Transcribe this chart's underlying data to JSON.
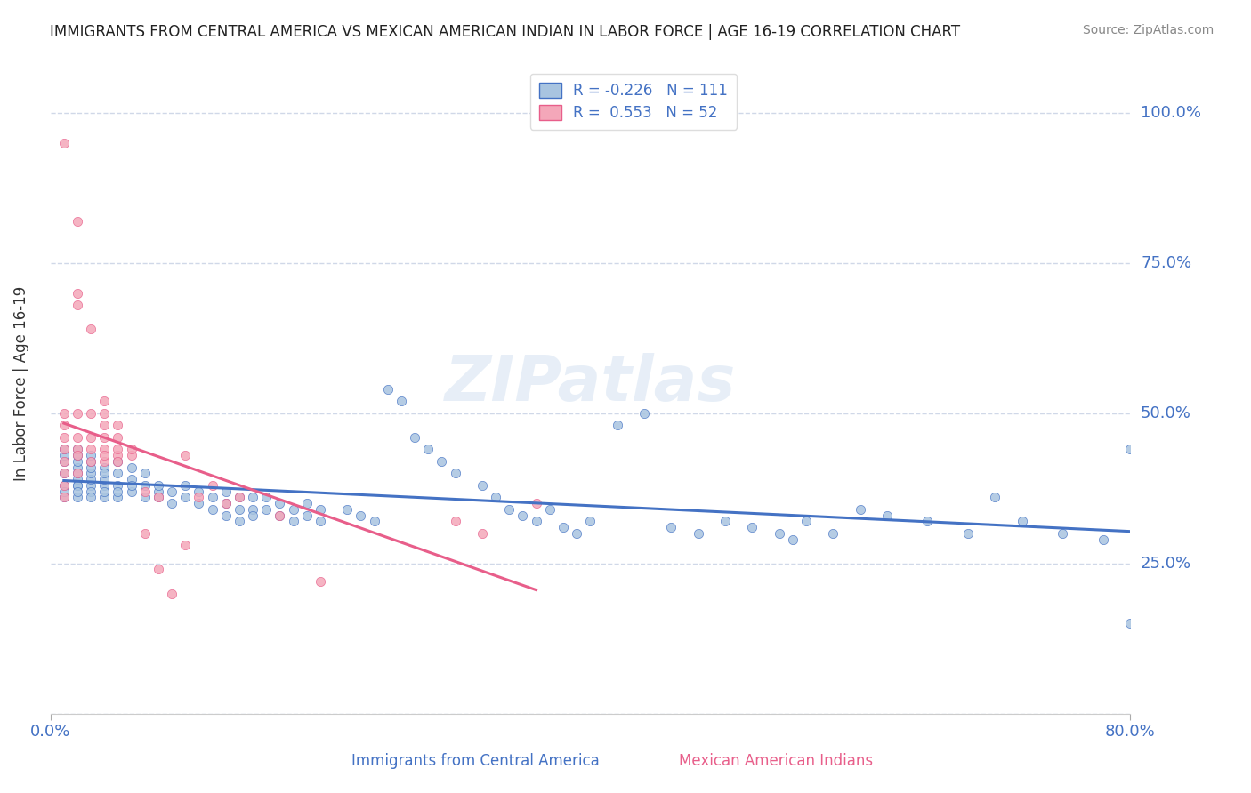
{
  "title": "IMMIGRANTS FROM CENTRAL AMERICA VS MEXICAN AMERICAN INDIAN IN LABOR FORCE | AGE 16-19 CORRELATION CHART",
  "source": "Source: ZipAtlas.com",
  "xlabel": "",
  "ylabel": "In Labor Force | Age 16-19",
  "legend_label_blue": "Immigrants from Central America",
  "legend_label_pink": "Mexican American Indians",
  "R_blue": -0.226,
  "N_blue": 111,
  "R_pink": 0.553,
  "N_pink": 52,
  "xlim": [
    0.0,
    0.8
  ],
  "ylim": [
    0.0,
    1.1
  ],
  "yticks": [
    0.0,
    0.25,
    0.5,
    0.75,
    1.0
  ],
  "ytick_labels": [
    "",
    "25.0%",
    "50.0%",
    "75.0%",
    "100.0%"
  ],
  "xtick_labels": [
    "0.0%",
    "80.0%"
  ],
  "xticks": [
    0.0,
    0.8
  ],
  "color_blue": "#a8c4e0",
  "color_blue_line": "#4472c4",
  "color_pink": "#f4a7b9",
  "color_pink_line": "#e85e8a",
  "watermark": "ZIPatlas",
  "watermark_color": "#d0dff0",
  "background_color": "#ffffff",
  "title_color": "#222222",
  "source_color": "#888888",
  "tick_label_color": "#4472c4",
  "grid_color": "#d0d8e8",
  "blue_dots_x": [
    0.01,
    0.01,
    0.01,
    0.01,
    0.01,
    0.01,
    0.01,
    0.02,
    0.02,
    0.02,
    0.02,
    0.02,
    0.02,
    0.02,
    0.02,
    0.02,
    0.02,
    0.03,
    0.03,
    0.03,
    0.03,
    0.03,
    0.03,
    0.03,
    0.03,
    0.04,
    0.04,
    0.04,
    0.04,
    0.04,
    0.04,
    0.05,
    0.05,
    0.05,
    0.05,
    0.05,
    0.06,
    0.06,
    0.06,
    0.06,
    0.07,
    0.07,
    0.07,
    0.08,
    0.08,
    0.08,
    0.09,
    0.09,
    0.1,
    0.1,
    0.11,
    0.11,
    0.12,
    0.12,
    0.13,
    0.13,
    0.13,
    0.14,
    0.14,
    0.14,
    0.15,
    0.15,
    0.15,
    0.16,
    0.16,
    0.17,
    0.17,
    0.18,
    0.18,
    0.19,
    0.19,
    0.2,
    0.2,
    0.22,
    0.23,
    0.24,
    0.25,
    0.26,
    0.27,
    0.28,
    0.29,
    0.3,
    0.32,
    0.33,
    0.34,
    0.35,
    0.36,
    0.37,
    0.38,
    0.39,
    0.4,
    0.42,
    0.44,
    0.46,
    0.48,
    0.5,
    0.52,
    0.54,
    0.55,
    0.56,
    0.58,
    0.6,
    0.62,
    0.65,
    0.68,
    0.7,
    0.72,
    0.75,
    0.78,
    0.8,
    0.8
  ],
  "blue_dots_y": [
    0.4,
    0.38,
    0.42,
    0.36,
    0.43,
    0.44,
    0.37,
    0.38,
    0.41,
    0.39,
    0.42,
    0.43,
    0.36,
    0.44,
    0.4,
    0.38,
    0.37,
    0.38,
    0.39,
    0.4,
    0.41,
    0.37,
    0.36,
    0.42,
    0.43,
    0.38,
    0.36,
    0.41,
    0.39,
    0.4,
    0.37,
    0.36,
    0.38,
    0.4,
    0.37,
    0.42,
    0.37,
    0.39,
    0.38,
    0.41,
    0.36,
    0.38,
    0.4,
    0.37,
    0.36,
    0.38,
    0.35,
    0.37,
    0.36,
    0.38,
    0.35,
    0.37,
    0.34,
    0.36,
    0.33,
    0.35,
    0.37,
    0.34,
    0.36,
    0.32,
    0.34,
    0.36,
    0.33,
    0.34,
    0.36,
    0.33,
    0.35,
    0.32,
    0.34,
    0.33,
    0.35,
    0.32,
    0.34,
    0.34,
    0.33,
    0.32,
    0.54,
    0.52,
    0.46,
    0.44,
    0.42,
    0.4,
    0.38,
    0.36,
    0.34,
    0.33,
    0.32,
    0.34,
    0.31,
    0.3,
    0.32,
    0.48,
    0.5,
    0.31,
    0.3,
    0.32,
    0.31,
    0.3,
    0.29,
    0.32,
    0.3,
    0.34,
    0.33,
    0.32,
    0.3,
    0.36,
    0.32,
    0.3,
    0.29,
    0.44,
    0.15
  ],
  "pink_dots_x": [
    0.01,
    0.01,
    0.01,
    0.01,
    0.01,
    0.01,
    0.01,
    0.01,
    0.01,
    0.02,
    0.02,
    0.02,
    0.02,
    0.02,
    0.02,
    0.02,
    0.02,
    0.03,
    0.03,
    0.03,
    0.03,
    0.03,
    0.04,
    0.04,
    0.04,
    0.04,
    0.04,
    0.04,
    0.04,
    0.05,
    0.05,
    0.05,
    0.05,
    0.05,
    0.06,
    0.06,
    0.07,
    0.07,
    0.08,
    0.08,
    0.09,
    0.1,
    0.1,
    0.11,
    0.12,
    0.13,
    0.14,
    0.17,
    0.2,
    0.3,
    0.32,
    0.36
  ],
  "pink_dots_y": [
    0.95,
    0.42,
    0.4,
    0.38,
    0.44,
    0.46,
    0.48,
    0.5,
    0.36,
    0.82,
    0.5,
    0.46,
    0.44,
    0.68,
    0.7,
    0.43,
    0.4,
    0.64,
    0.44,
    0.46,
    0.5,
    0.42,
    0.44,
    0.46,
    0.48,
    0.42,
    0.43,
    0.5,
    0.52,
    0.43,
    0.44,
    0.46,
    0.48,
    0.42,
    0.43,
    0.44,
    0.37,
    0.3,
    0.36,
    0.24,
    0.2,
    0.43,
    0.28,
    0.36,
    0.38,
    0.35,
    0.36,
    0.33,
    0.22,
    0.32,
    0.3,
    0.35
  ]
}
